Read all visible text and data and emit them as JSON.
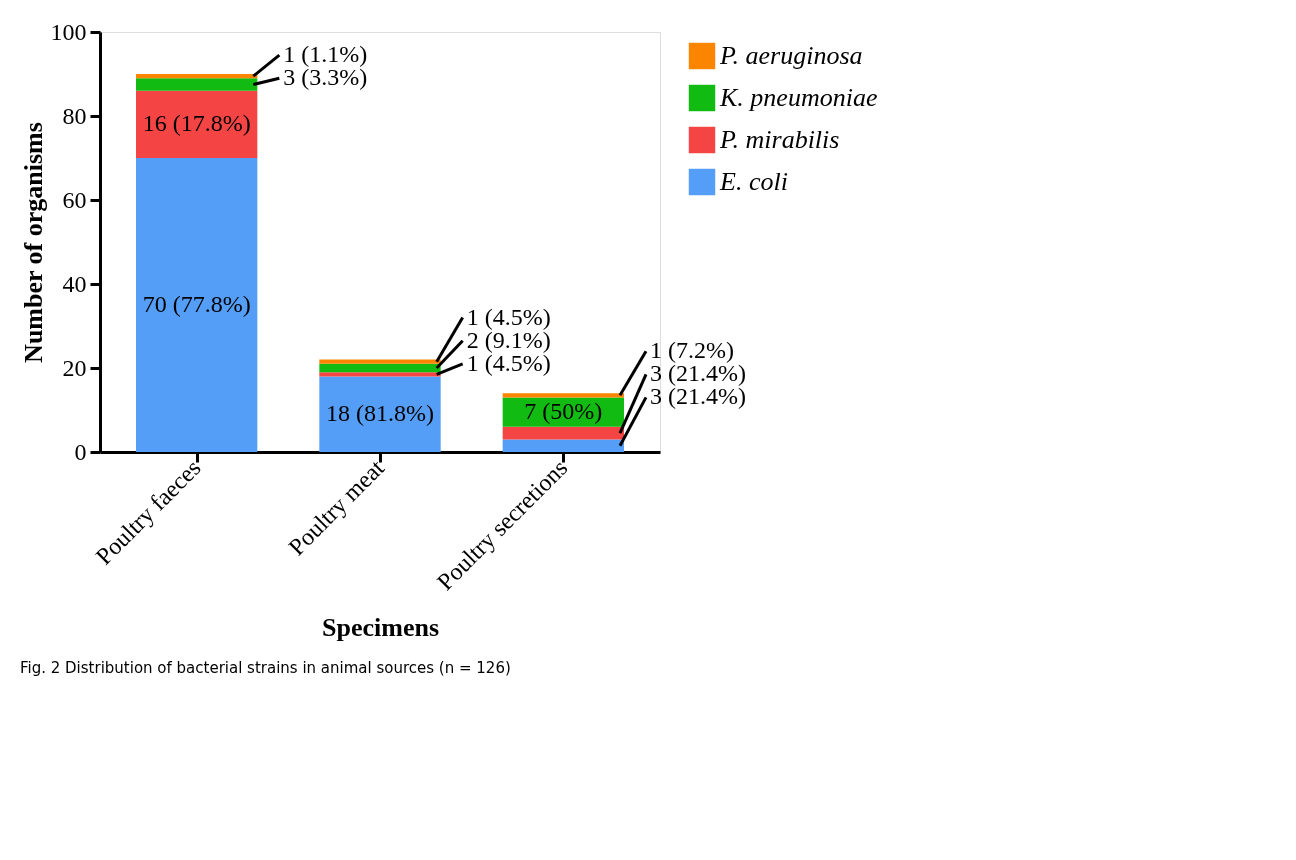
{
  "chart_data": {
    "type": "bar",
    "stacked": true,
    "xlabel": "Specimens",
    "ylabel": "Number of organisms",
    "categories": [
      "Poultry faeces",
      "Poultry meat",
      "Poultry secretions"
    ],
    "series": [
      {
        "name": "E. coli",
        "color": "#559ef7",
        "values": [
          70,
          18,
          3
        ],
        "value_labels": [
          "70 (77.8%)",
          "18 (81.8%)",
          "3 (21.4%)"
        ]
      },
      {
        "name": "P. mirabilis",
        "color": "#f44444",
        "values": [
          16,
          1,
          3
        ],
        "value_labels": [
          "16 (17.8%)",
          "1 (4.5%)",
          "3 (21.4%)"
        ]
      },
      {
        "name": "K. pneumoniae",
        "color": "#11bb11",
        "values": [
          3,
          2,
          7
        ],
        "value_labels": [
          "3 (3.3%)",
          "2 (9.1%)",
          "7 (50%)"
        ]
      },
      {
        "name": "P. aeruginosa",
        "color": "#fb8500",
        "values": [
          1,
          1,
          1
        ],
        "value_labels": [
          "1 (1.1%)",
          "1 (4.5%)",
          "1 (7.2%)"
        ]
      }
    ],
    "ylim": [
      0,
      100
    ],
    "yticks": [
      0,
      20,
      40,
      60,
      80,
      100
    ],
    "grid": false,
    "legend": "right",
    "annotations": [
      "Fig. 2  Distribution of bacterial strains in animal sources (n = 126)"
    ]
  }
}
